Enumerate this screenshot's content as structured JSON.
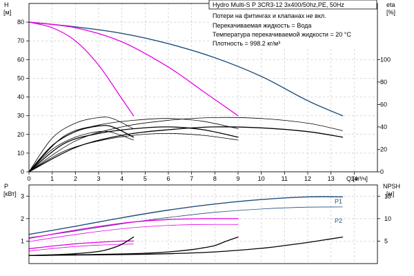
{
  "chart_data": [
    {
      "type": "line",
      "title": "Hydro Multi-S P 3CR3-12 3x400/50hz,PE, 50Hz",
      "xlabel": "Q [м³/ч]",
      "ylabel_left": "H",
      "ylabel_left_unit": "[м]",
      "ylabel_right": "eta",
      "ylabel_right_unit": "[%]",
      "xlim": [
        0,
        15
      ],
      "ylim_left": [
        0,
        90
      ],
      "ylim_right": [
        0,
        150
      ],
      "x_ticks": [
        "0",
        "1",
        "2",
        "3",
        "4",
        "5",
        "6",
        "7",
        "8",
        "9",
        "10",
        "11",
        "12",
        "13",
        "14"
      ],
      "y_left_ticks": [
        "0",
        "10",
        "20",
        "30",
        "40",
        "50",
        "60",
        "70",
        "80"
      ],
      "y_right_ticks": [
        "0",
        "20",
        "40",
        "60",
        "80",
        "100"
      ],
      "grid": true,
      "notes": [
        "Потери на фитингах и клапанах не вкл.",
        "Перекачиваемая жидкость = Вода",
        "Температура перекачиваемой жидкости = 20 °C",
        "Плотность = 998.2 кг/м³"
      ],
      "series": [
        {
          "axis": "left",
          "color": "#1f4e79",
          "width": 1.4,
          "x": [
            0,
            2,
            4,
            6,
            8,
            10,
            12,
            13.5
          ],
          "y": [
            80,
            77.5,
            74,
            68.5,
            61,
            51,
            38,
            30
          ]
        },
        {
          "axis": "left",
          "color": "#e600e6",
          "width": 1.3,
          "x": [
            0,
            2,
            4,
            6,
            7.5,
            9
          ],
          "y": [
            80,
            77,
            69.5,
            56,
            43,
            30
          ]
        },
        {
          "axis": "left",
          "color": "#e600e6",
          "width": 1.3,
          "x": [
            0,
            1,
            2,
            3,
            4,
            4.5
          ],
          "y": [
            80,
            77,
            70,
            57,
            39,
            30
          ]
        },
        {
          "axis": "left",
          "color": "#000000",
          "width": 1.3,
          "x": [
            0,
            2,
            4,
            6,
            8,
            10,
            12,
            13.5
          ],
          "y": [
            0,
            13,
            19.5,
            22.5,
            24,
            23.5,
            21.5,
            18.5
          ]
        },
        {
          "axis": "left",
          "color": "#000000",
          "width": 0.8,
          "x": [
            0,
            2,
            4,
            6,
            8,
            10,
            12,
            13.5
          ],
          "y": [
            0,
            16.5,
            24,
            27.5,
            29,
            28.5,
            26,
            22
          ]
        },
        {
          "axis": "left",
          "color": "#000000",
          "width": 1.3,
          "x": [
            0,
            1.5,
            3,
            4.5,
            6,
            7.5,
            9
          ],
          "y": [
            0,
            15,
            20.5,
            23,
            24,
            22.5,
            18.5
          ]
        },
        {
          "axis": "left",
          "color": "#000000",
          "width": 0.8,
          "x": [
            0,
            1.5,
            3,
            4.5,
            6,
            7.5,
            9
          ],
          "y": [
            0,
            19,
            25,
            27.5,
            28.5,
            27,
            23
          ]
        },
        {
          "axis": "left",
          "color": "#000000",
          "width": 0.8,
          "x": [
            0,
            1.5,
            3,
            4.5,
            6,
            7.5,
            9
          ],
          "y": [
            0,
            11,
            16.5,
            19.5,
            20.5,
            19.5,
            17
          ]
        },
        {
          "axis": "left",
          "color": "#000000",
          "width": 1.3,
          "x": [
            0,
            1,
            2,
            3,
            3.6,
            4.5
          ],
          "y": [
            0,
            14,
            21.5,
            24.5,
            24,
            18.5
          ]
        },
        {
          "axis": "left",
          "color": "#000000",
          "width": 0.8,
          "x": [
            0,
            1,
            2,
            3,
            3.6,
            4.5
          ],
          "y": [
            0,
            18,
            26,
            29,
            28.5,
            23
          ]
        },
        {
          "axis": "left",
          "color": "#000000",
          "width": 0.8,
          "x": [
            0,
            1,
            2,
            3,
            3.6,
            4.5
          ],
          "y": [
            0,
            12,
            18.5,
            21.5,
            21,
            17
          ]
        }
      ]
    },
    {
      "type": "line",
      "xlim": [
        0,
        15
      ],
      "ylabel_left": "P",
      "ylabel_left_unit": "[кВт]",
      "ylabel_right": "NPSH",
      "ylabel_right_unit": "[м]",
      "ylim_left": [
        0,
        3.5
      ],
      "ylim_right": [
        0,
        17.5
      ],
      "y_left_ticks": [
        "1",
        "2",
        "3"
      ],
      "y_right_ticks": [
        "5",
        "10",
        "15"
      ],
      "grid": true,
      "series_labels": [
        "P1",
        "P2"
      ],
      "series": [
        {
          "axis": "left",
          "color": "#1f4e79",
          "width": 1.4,
          "x": [
            0,
            2,
            4,
            6,
            8,
            10,
            12,
            13.5
          ],
          "y": [
            1.3,
            1.66,
            2.04,
            2.38,
            2.65,
            2.85,
            2.97,
            2.97
          ]
        },
        {
          "axis": "left",
          "color": "#1f4e79",
          "width": 0.8,
          "x": [
            0,
            2,
            4,
            6,
            8,
            10,
            12,
            13.5
          ],
          "y": [
            1.15,
            1.45,
            1.77,
            2.05,
            2.28,
            2.43,
            2.51,
            2.52
          ]
        },
        {
          "axis": "left",
          "color": "#e600e6",
          "width": 1.3,
          "x": [
            0,
            1.5,
            3,
            4.5,
            6,
            7.5,
            9
          ],
          "y": [
            1.12,
            1.4,
            1.65,
            1.85,
            1.96,
            2.0,
            2.0
          ]
        },
        {
          "axis": "left",
          "color": "#e600e6",
          "width": 0.8,
          "x": [
            0,
            1.5,
            3,
            4.5,
            6,
            7.5,
            9
          ],
          "y": [
            0.98,
            1.22,
            1.43,
            1.6,
            1.7,
            1.74,
            1.74
          ]
        },
        {
          "axis": "left",
          "color": "#e600e6",
          "width": 1.3,
          "x": [
            0,
            1,
            2,
            3,
            4,
            4.5
          ],
          "y": [
            0.66,
            0.78,
            0.88,
            0.95,
            1.0,
            1.0
          ]
        },
        {
          "axis": "left",
          "color": "#e600e6",
          "width": 0.8,
          "x": [
            0,
            1,
            2,
            3,
            4,
            4.5
          ],
          "y": [
            0.56,
            0.67,
            0.76,
            0.82,
            0.86,
            0.87
          ]
        },
        {
          "axis": "right",
          "color": "#000000",
          "width": 1.3,
          "x": [
            0,
            2,
            4,
            6,
            8,
            10,
            11,
            12,
            13,
            13.5
          ],
          "y": [
            1.8,
            1.9,
            2.0,
            2.2,
            2.6,
            3.4,
            4.0,
            4.7,
            5.5,
            5.9
          ]
        },
        {
          "axis": "right",
          "color": "#000000",
          "width": 1.3,
          "x": [
            0,
            2,
            4,
            5,
            6,
            7,
            7.5,
            8,
            8.5,
            9
          ],
          "y": [
            1.8,
            1.95,
            2.15,
            2.3,
            2.6,
            3.1,
            3.5,
            4.0,
            5.0,
            5.9
          ]
        },
        {
          "axis": "right",
          "color": "#000000",
          "width": 1.3,
          "x": [
            0,
            1,
            2,
            3,
            3.5,
            4,
            4.5
          ],
          "y": [
            1.8,
            1.95,
            2.2,
            2.7,
            3.3,
            4.3,
            5.9
          ]
        }
      ]
    }
  ]
}
